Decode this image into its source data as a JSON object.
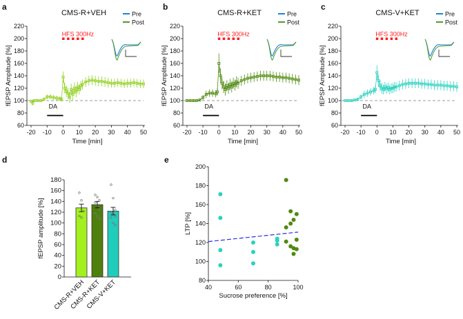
{
  "colors": {
    "veh": "#8fd11f",
    "rket": "#4f8a10",
    "vket": "#2bd1c1",
    "pre": "#1a7fe0",
    "post": "#4e9a2c",
    "hfs": "#ff1a1a",
    "fit": "#2230e0"
  },
  "chart_data": [
    {
      "panel": "a",
      "type": "line",
      "title": "CMS-R+VEH",
      "xlabel": "Time [min]",
      "ylabel": "fEPSP Amplitude [%]",
      "xlim": [
        -20,
        50
      ],
      "ylim": [
        60,
        220
      ],
      "xticks": [
        -20,
        -10,
        0,
        10,
        20,
        30,
        40,
        50
      ],
      "yticks": [
        60,
        80,
        100,
        120,
        140,
        160,
        180,
        200,
        220
      ],
      "hfs_label": "HFS 300Hz",
      "drug_label": "DA",
      "drug_interval": [
        -10,
        0
      ],
      "baseline": 100,
      "legend": [
        "Pre",
        "Post"
      ],
      "color": "#8fd11f",
      "points": [
        [
          -20,
          99,
          2
        ],
        [
          -19,
          96,
          4
        ],
        [
          -18,
          100,
          2
        ],
        [
          -16,
          100,
          2
        ],
        [
          -14,
          100,
          2
        ],
        [
          -12,
          102,
          3
        ],
        [
          -10,
          106,
          4
        ],
        [
          -8,
          106,
          4
        ],
        [
          -6,
          105,
          4
        ],
        [
          -4,
          104,
          4
        ],
        [
          -2,
          103,
          4
        ],
        [
          -1,
          102,
          4
        ],
        [
          0,
          138,
          9
        ],
        [
          1,
          120,
          9
        ],
        [
          2,
          115,
          9
        ],
        [
          3,
          112,
          9
        ],
        [
          4,
          105,
          9
        ],
        [
          5,
          118,
          9
        ],
        [
          6,
          110,
          9
        ],
        [
          7,
          120,
          9
        ],
        [
          8,
          114,
          9
        ],
        [
          9,
          122,
          8
        ],
        [
          10,
          118,
          8
        ],
        [
          11,
          124,
          8
        ],
        [
          12,
          126,
          8
        ],
        [
          14,
          130,
          8
        ],
        [
          16,
          132,
          8
        ],
        [
          18,
          133,
          8
        ],
        [
          20,
          132,
          8
        ],
        [
          22,
          131,
          8
        ],
        [
          24,
          131,
          8
        ],
        [
          26,
          130,
          8
        ],
        [
          28,
          129,
          8
        ],
        [
          30,
          128,
          7
        ],
        [
          32,
          128,
          7
        ],
        [
          34,
          129,
          7
        ],
        [
          36,
          128,
          7
        ],
        [
          38,
          127,
          7
        ],
        [
          40,
          128,
          7
        ],
        [
          42,
          128,
          7
        ],
        [
          44,
          129,
          7
        ],
        [
          46,
          128,
          7
        ],
        [
          48,
          127,
          7
        ],
        [
          50,
          127,
          7
        ]
      ]
    },
    {
      "panel": "b",
      "type": "line",
      "title": "CMS-R+KET",
      "xlabel": "Time [min]",
      "ylabel": "fEPSP Amplitude [%]",
      "xlim": [
        -20,
        50
      ],
      "ylim": [
        60,
        220
      ],
      "xticks": [
        -20,
        -10,
        0,
        10,
        20,
        30,
        40,
        50
      ],
      "yticks": [
        60,
        80,
        100,
        120,
        140,
        160,
        180,
        200,
        220
      ],
      "hfs_label": "HFS 300Hz",
      "drug_label": "DA",
      "drug_interval": [
        -10,
        0
      ],
      "baseline": 100,
      "legend": [
        "Pre",
        "Post"
      ],
      "color": "#4f8a10",
      "points": [
        [
          -20,
          100,
          2
        ],
        [
          -18,
          100,
          2
        ],
        [
          -16,
          100,
          2
        ],
        [
          -14,
          100,
          2
        ],
        [
          -12,
          101,
          2
        ],
        [
          -10,
          105,
          4
        ],
        [
          -8,
          110,
          6
        ],
        [
          -6,
          112,
          6
        ],
        [
          -4,
          112,
          6
        ],
        [
          -2,
          111,
          6
        ],
        [
          -1,
          114,
          6
        ],
        [
          0,
          160,
          16
        ],
        [
          1,
          140,
          12
        ],
        [
          2,
          128,
          10
        ],
        [
          3,
          122,
          10
        ],
        [
          4,
          118,
          10
        ],
        [
          5,
          124,
          9
        ],
        [
          6,
          120,
          9
        ],
        [
          7,
          126,
          9
        ],
        [
          8,
          122,
          9
        ],
        [
          9,
          128,
          9
        ],
        [
          10,
          125,
          9
        ],
        [
          11,
          130,
          9
        ],
        [
          12,
          128,
          9
        ],
        [
          14,
          132,
          8
        ],
        [
          16,
          134,
          8
        ],
        [
          18,
          136,
          8
        ],
        [
          20,
          137,
          8
        ],
        [
          22,
          138,
          8
        ],
        [
          24,
          139,
          8
        ],
        [
          26,
          140,
          8
        ],
        [
          28,
          140,
          8
        ],
        [
          30,
          140,
          8
        ],
        [
          32,
          140,
          8
        ],
        [
          34,
          139,
          8
        ],
        [
          36,
          138,
          8
        ],
        [
          38,
          138,
          8
        ],
        [
          40,
          137,
          8
        ],
        [
          42,
          137,
          8
        ],
        [
          44,
          136,
          8
        ],
        [
          46,
          135,
          8
        ],
        [
          48,
          134,
          8
        ],
        [
          50,
          133,
          8
        ]
      ]
    },
    {
      "panel": "c",
      "type": "line",
      "title": "CMS-V+KET",
      "xlabel": "Time [min]",
      "ylabel": "fEPSP Amplitude [%]",
      "xlim": [
        -20,
        50
      ],
      "ylim": [
        60,
        220
      ],
      "xticks": [
        -20,
        -10,
        0,
        10,
        20,
        30,
        40,
        50
      ],
      "yticks": [
        60,
        80,
        100,
        120,
        140,
        160,
        180,
        200,
        220
      ],
      "hfs_label": "HFS 300Hz",
      "drug_label": "DA",
      "drug_interval": [
        -10,
        0
      ],
      "baseline": 100,
      "legend": [
        "Pre",
        "Post"
      ],
      "color": "#2bd1c1",
      "points": [
        [
          -20,
          100,
          2
        ],
        [
          -18,
          100,
          2
        ],
        [
          -16,
          100,
          2
        ],
        [
          -14,
          101,
          2
        ],
        [
          -12,
          102,
          3
        ],
        [
          -10,
          106,
          4
        ],
        [
          -8,
          110,
          6
        ],
        [
          -6,
          112,
          6
        ],
        [
          -4,
          114,
          6
        ],
        [
          -2,
          116,
          6
        ],
        [
          -1,
          118,
          6
        ],
        [
          0,
          145,
          12
        ],
        [
          1,
          132,
          10
        ],
        [
          2,
          124,
          9
        ],
        [
          3,
          120,
          9
        ],
        [
          4,
          118,
          8
        ],
        [
          5,
          122,
          8
        ],
        [
          6,
          119,
          8
        ],
        [
          7,
          121,
          8
        ],
        [
          8,
          118,
          8
        ],
        [
          9,
          120,
          8
        ],
        [
          10,
          120,
          8
        ],
        [
          11,
          122,
          8
        ],
        [
          12,
          122,
          8
        ],
        [
          14,
          124,
          8
        ],
        [
          16,
          126,
          8
        ],
        [
          18,
          127,
          8
        ],
        [
          20,
          128,
          8
        ],
        [
          22,
          128,
          8
        ],
        [
          24,
          128,
          8
        ],
        [
          26,
          128,
          8
        ],
        [
          28,
          127,
          8
        ],
        [
          30,
          127,
          8
        ],
        [
          32,
          126,
          8
        ],
        [
          34,
          126,
          8
        ],
        [
          36,
          125,
          8
        ],
        [
          38,
          125,
          8
        ],
        [
          40,
          125,
          8
        ],
        [
          42,
          124,
          8
        ],
        [
          44,
          124,
          8
        ],
        [
          46,
          123,
          8
        ],
        [
          48,
          123,
          8
        ],
        [
          50,
          122,
          8
        ]
      ]
    },
    {
      "panel": "d",
      "type": "bar",
      "ylabel": "fEPSP amplitude [%]",
      "ylim": [
        0,
        180
      ],
      "yticks": [
        0,
        20,
        40,
        60,
        80,
        100,
        120,
        140,
        160,
        180
      ],
      "categories": [
        "CMS-R+VEH",
        "CMS-R+KET",
        "CMS-V+KET"
      ],
      "values": [
        128,
        134,
        122
      ],
      "sem": [
        7,
        6,
        7
      ],
      "colors": [
        "#a4f01e",
        "#4f7f0c",
        "#22ccbb"
      ],
      "individual_points": [
        [
          156,
          142,
          122,
          113,
          110
        ],
        [
          152,
          148,
          142,
          138,
          132,
          125,
          118,
          113,
          108
        ],
        [
          171,
          146,
          124,
          120,
          118,
          112,
          110,
          100,
          96
        ]
      ]
    },
    {
      "panel": "e",
      "type": "scatter",
      "xlabel": "Sucrose preference [%]",
      "ylabel": "LTP [%]",
      "xlim": [
        40,
        100
      ],
      "ylim": [
        80,
        200
      ],
      "xticks": [
        40,
        60,
        80,
        100
      ],
      "yticks": [
        80,
        100,
        120,
        140,
        160,
        180,
        200
      ],
      "series": [
        {
          "color": "#2bd1c1",
          "points": [
            [
              48,
              171
            ],
            [
              48,
              146
            ],
            [
              48,
              112
            ],
            [
              48,
              96
            ],
            [
              70,
              120
            ],
            [
              70,
              110
            ],
            [
              70,
              98
            ],
            [
              86,
              124
            ],
            [
              86,
              122
            ],
            [
              86,
              118
            ]
          ]
        },
        {
          "color": "#4f8a10",
          "points": [
            [
              92,
              186
            ],
            [
              95,
              153
            ],
            [
              99,
              150
            ],
            [
              97,
              144
            ],
            [
              95,
              140
            ],
            [
              92,
              136
            ],
            [
              99,
              123
            ],
            [
              92,
              121
            ],
            [
              95,
              116
            ],
            [
              97,
              114
            ],
            [
              99,
              113
            ],
            [
              97,
              108
            ]
          ]
        }
      ],
      "fit_line": [
        [
          40,
          121
        ],
        [
          100,
          131
        ]
      ]
    }
  ]
}
